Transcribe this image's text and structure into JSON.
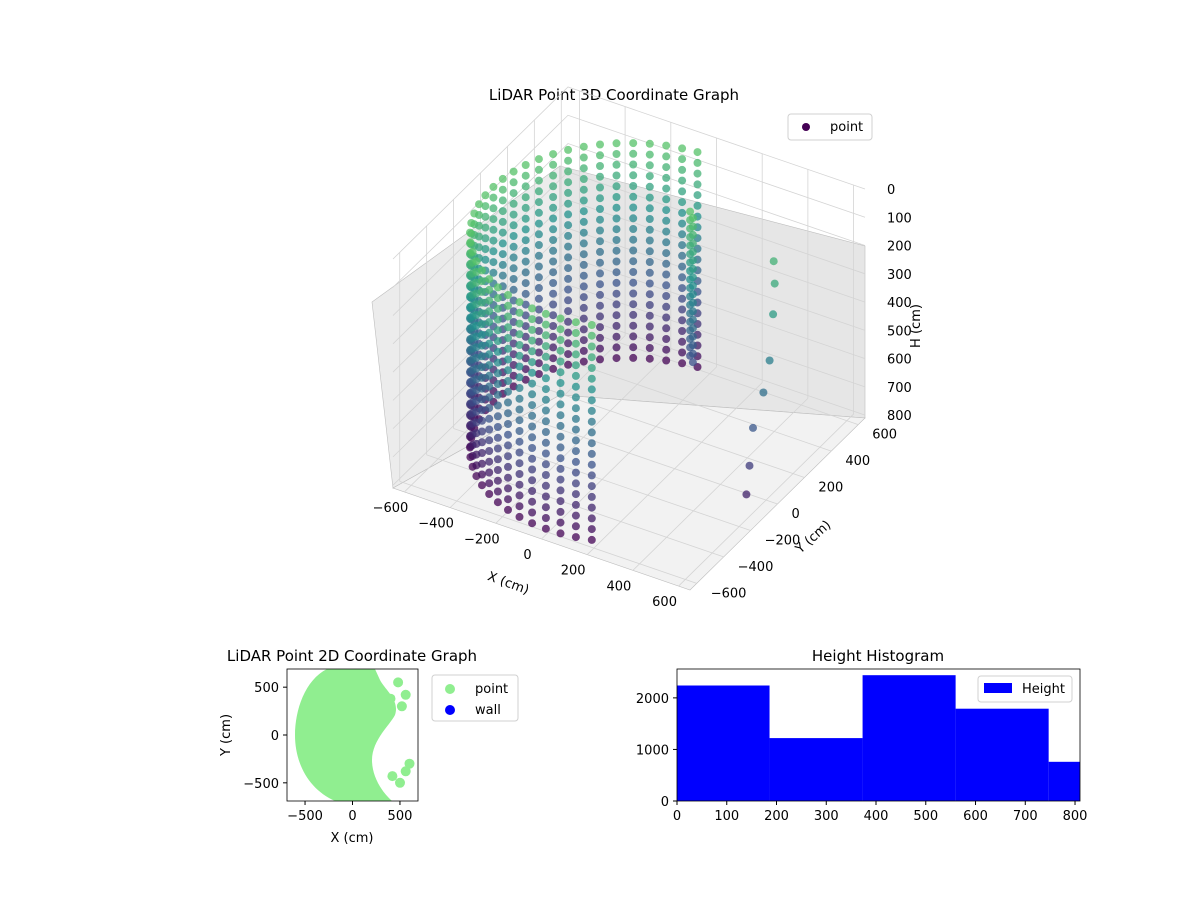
{
  "chart_data": [
    {
      "type": "scatter",
      "projection": "3d",
      "title": "LiDAR Point 3D Coordinate Graph",
      "xlabel": "X (cm)",
      "ylabel": "Y (cm)",
      "zlabel": "H (cm)",
      "xticks": [
        "−600",
        "−400",
        "−200",
        "0",
        "200",
        "400",
        "600"
      ],
      "yticks": [
        "−600",
        "−400",
        "−200",
        "0",
        "200",
        "400",
        "600"
      ],
      "zticks": [
        "0",
        "100",
        "200",
        "300",
        "400",
        "500",
        "600",
        "700",
        "800"
      ],
      "xlim": [
        -650,
        650
      ],
      "ylim": [
        -650,
        650
      ],
      "zlim": [
        0,
        810
      ],
      "zaxis_inverted": true,
      "colormap": "viridis",
      "grid": true,
      "legend": {
        "placement": "top-right",
        "entries": [
          {
            "name": "point",
            "color": "#440154"
          }
        ]
      },
      "series": [
        {
          "name": "point",
          "description_shape": "cylindrical shell of radius ~600 cm centered near (0,0), points on the west/south half dense, wall gap on the east side",
          "radius_cm": 600,
          "h_range": [
            0,
            810
          ]
        }
      ]
    },
    {
      "type": "scatter",
      "title": "LiDAR Point 2D Coordinate Graph",
      "xlabel": "X (cm)",
      "ylabel": "Y (cm)",
      "xticks": [
        "−500",
        "0",
        "500"
      ],
      "yticks": [
        "−500",
        "0",
        "500"
      ],
      "xlim": [
        -690,
        690
      ],
      "ylim": [
        -690,
        690
      ],
      "grid": false,
      "legend": {
        "placement": "outside-right",
        "entries": [
          {
            "name": "point",
            "color": "#90ee90"
          },
          {
            "name": "wall",
            "color": "#0000ff"
          }
        ]
      },
      "series": [
        {
          "name": "point",
          "color": "#90ee90",
          "radius_cm": 600
        },
        {
          "name": "wall",
          "color": "#0000ff",
          "values": []
        }
      ]
    },
    {
      "type": "bar",
      "title": "Height Histogram",
      "xticks": [
        "0",
        "100",
        "200",
        "300",
        "400",
        "500",
        "600",
        "700",
        "800"
      ],
      "yticks": [
        "0",
        "1000",
        "2000"
      ],
      "xlim": [
        0,
        810
      ],
      "ylim": [
        0,
        2560
      ],
      "grid": false,
      "legend": {
        "placement": "top-right",
        "entries": [
          {
            "name": "Height",
            "color": "#0000ff"
          }
        ]
      },
      "series": [
        {
          "name": "Height",
          "color": "#0000ff",
          "bins": [
            {
              "start": 0,
              "end": 186,
              "value": 2240
            },
            {
              "start": 186,
              "end": 373,
              "value": 1220
            },
            {
              "start": 373,
              "end": 560,
              "value": 2440
            },
            {
              "start": 560,
              "end": 747,
              "value": 1790
            },
            {
              "start": 747,
              "end": 810,
              "value": 760
            }
          ]
        }
      ]
    }
  ]
}
